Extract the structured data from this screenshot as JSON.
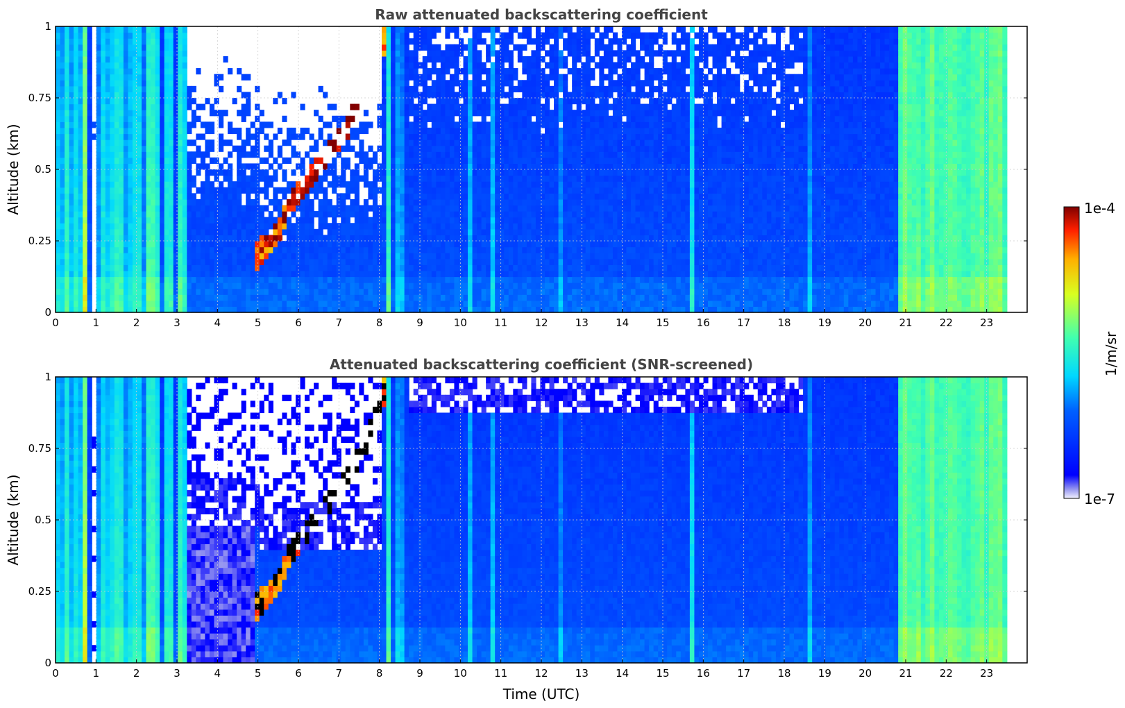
{
  "chart_data": [
    {
      "type": "heatmap",
      "title": "Raw attenuated backscattering coefficient",
      "xlabel": "",
      "ylabel": "Altitude (km)",
      "xlim": [
        0,
        24
      ],
      "ylim": [
        0,
        1
      ],
      "x_ticks": [
        "0",
        "1",
        "2",
        "3",
        "4",
        "5",
        "6",
        "7",
        "8",
        "9",
        "10",
        "11",
        "12",
        "13",
        "14",
        "15",
        "16",
        "17",
        "18",
        "19",
        "20",
        "21",
        "22",
        "23"
      ],
      "y_ticks": [
        "0",
        "0.25",
        "0.5",
        "0.75",
        "1"
      ],
      "grid": true,
      "data_end_hour": 23.5,
      "noise_screened": false
    },
    {
      "type": "heatmap",
      "title": "Attenuated backscattering coefficient (SNR-screened)",
      "xlabel": "Time (UTC)",
      "ylabel": "Altitude (km)",
      "xlim": [
        0,
        24
      ],
      "ylim": [
        0,
        1
      ],
      "x_ticks": [
        "0",
        "1",
        "2",
        "3",
        "4",
        "5",
        "6",
        "7",
        "8",
        "9",
        "10",
        "11",
        "12",
        "13",
        "14",
        "15",
        "16",
        "17",
        "18",
        "19",
        "20",
        "21",
        "22",
        "23"
      ],
      "y_ticks": [
        "0",
        "0.25",
        "0.5",
        "0.75",
        "1"
      ],
      "grid": true,
      "data_end_hour": 23.5,
      "noise_screened": true
    }
  ],
  "colorbar": {
    "label": "1/m/sr",
    "max_label": "1e-4",
    "min_label": "1e-7",
    "colormap": "jet",
    "scale": "log",
    "range": [
      1e-07,
      0.0001
    ]
  },
  "features": {
    "vertical_bands": [
      {
        "t": 0.1,
        "lvl": 0.55
      },
      {
        "t": 0.2,
        "lvl": 0.48
      },
      {
        "t": 0.3,
        "lvl": 0.58
      },
      {
        "t": 0.45,
        "lvl": 0.55
      },
      {
        "t": 0.55,
        "lvl": 0.6
      },
      {
        "t": 0.7,
        "lvl": 0.78
      },
      {
        "t": 1.1,
        "lvl": 0.45
      },
      {
        "t": 1.2,
        "lvl": 0.55
      },
      {
        "t": 1.35,
        "lvl": 0.6
      },
      {
        "t": 1.5,
        "lvl": 0.55
      },
      {
        "t": 1.65,
        "lvl": 0.58
      },
      {
        "t": 1.8,
        "lvl": 0.55
      },
      {
        "t": 1.95,
        "lvl": 0.5
      },
      {
        "t": 2.1,
        "lvl": 0.55
      },
      {
        "t": 2.25,
        "lvl": 0.5
      },
      {
        "t": 2.35,
        "lvl": 0.75
      },
      {
        "t": 2.5,
        "lvl": 0.55
      },
      {
        "t": 2.7,
        "lvl": 0.6
      },
      {
        "t": 2.85,
        "lvl": 0.5
      },
      {
        "t": 3.1,
        "lvl": 0.6
      },
      {
        "t": 3.2,
        "lvl": 0.5
      },
      {
        "t": 8.25,
        "lvl": 0.6
      },
      {
        "t": 8.5,
        "lvl": 0.5
      },
      {
        "t": 10.2,
        "lvl": 0.5
      },
      {
        "t": 10.8,
        "lvl": 0.42
      },
      {
        "t": 12.5,
        "lvl": 0.4
      },
      {
        "t": 15.7,
        "lvl": 0.52
      },
      {
        "t": 18.6,
        "lvl": 0.45
      },
      {
        "t": 21.0,
        "lvl": 0.65
      },
      {
        "t": 21.3,
        "lvl": 0.65
      },
      {
        "t": 21.6,
        "lvl": 0.55
      },
      {
        "t": 22.5,
        "lvl": 0.5
      },
      {
        "t": 23.0,
        "lvl": 0.55
      },
      {
        "t": 23.3,
        "lvl": 0.62
      }
    ],
    "cloud_layer": [
      {
        "t": 4.9,
        "alt": 0.18
      },
      {
        "t": 5.5,
        "alt": 0.28
      },
      {
        "t": 5.8,
        "alt": 0.38
      },
      {
        "t": 6.2,
        "alt": 0.45
      },
      {
        "t": 6.6,
        "alt": 0.52
      },
      {
        "t": 7.0,
        "alt": 0.6
      },
      {
        "t": 7.3,
        "alt": 0.67
      },
      {
        "t": 7.7,
        "alt": 0.78
      },
      {
        "t": 8.0,
        "alt": 0.9
      },
      {
        "t": 8.2,
        "alt": 0.98
      }
    ]
  }
}
